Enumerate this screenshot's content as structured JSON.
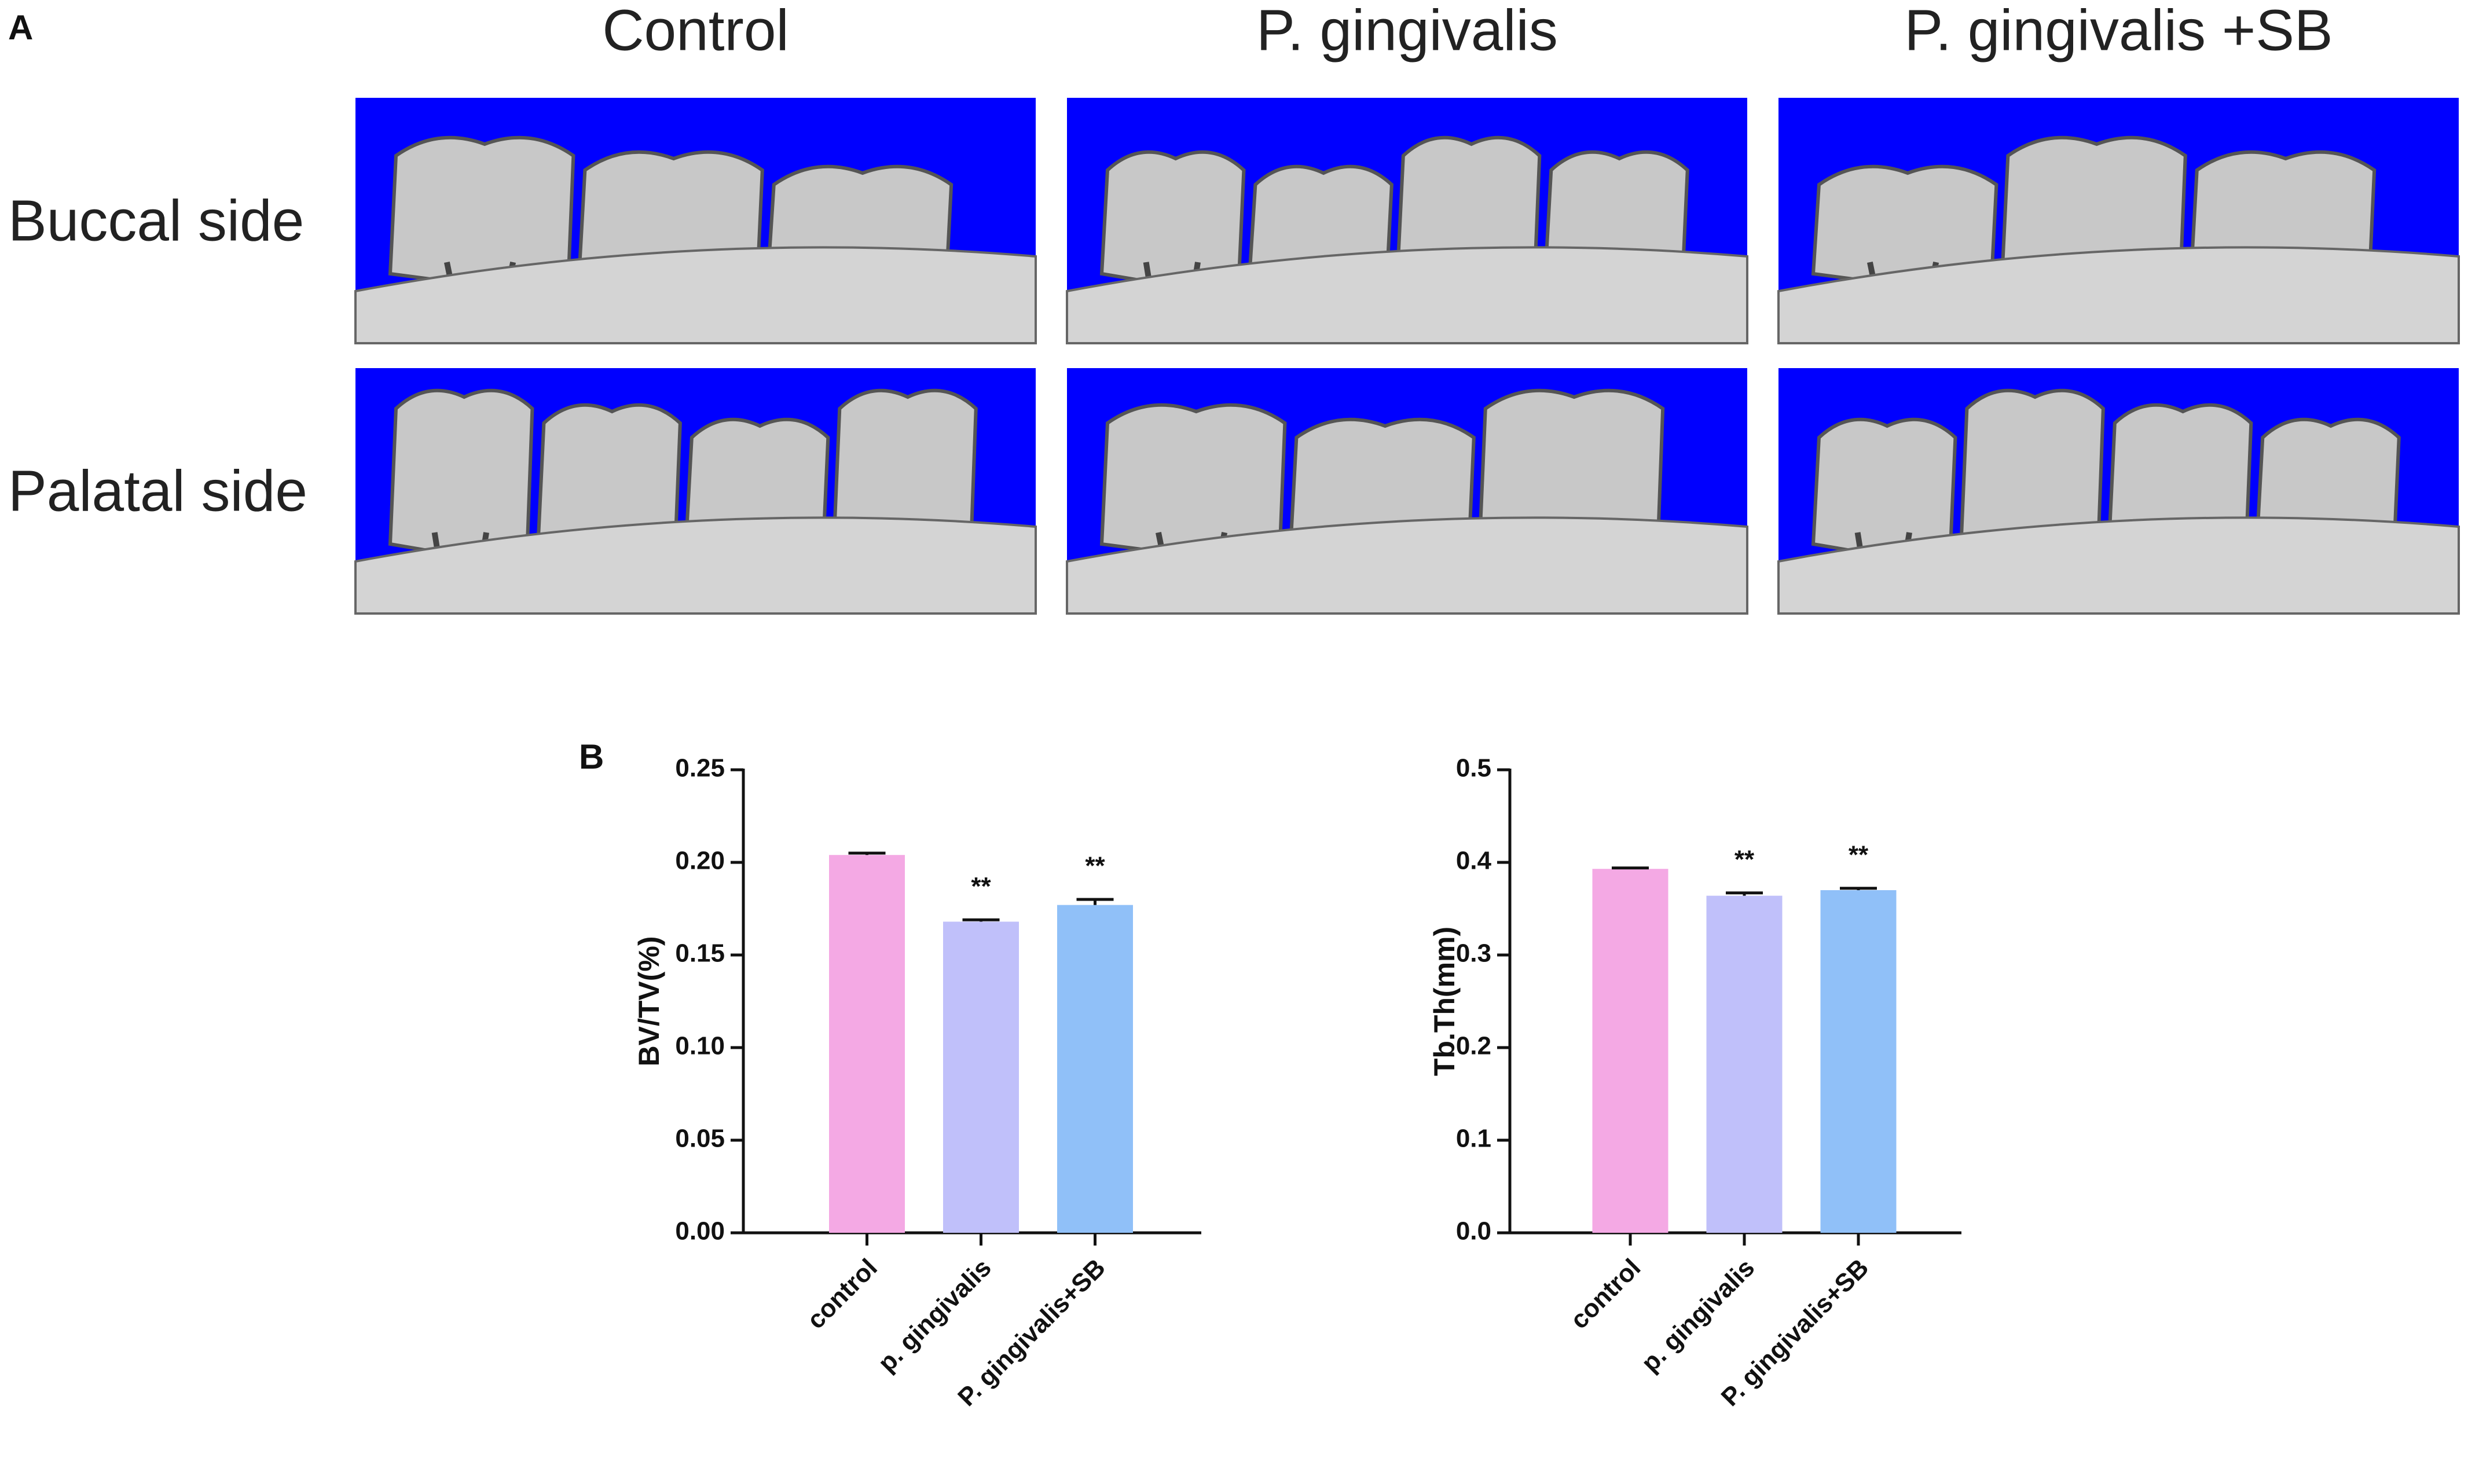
{
  "panel_a": {
    "label": "A",
    "columns": [
      "Control",
      "P. gingivalis",
      "P. gingivalis +SB"
    ],
    "rows": [
      "Buccal side",
      "Palatal side"
    ]
  },
  "chart_data": [
    {
      "type": "bar",
      "label": "B",
      "ylabel": "BV/TV(%)",
      "categories": [
        "control",
        "p. gingivalis",
        "P. gingivalis+SB"
      ],
      "values": [
        0.204,
        0.168,
        0.177
      ],
      "errors": [
        0.001,
        0.001,
        0.003
      ],
      "annotations": [
        null,
        "**",
        "**"
      ],
      "colors": [
        "#f4a9e4",
        "#c0c0fa",
        "#90c0f8"
      ],
      "ylim": [
        0,
        0.25
      ],
      "yticks": [
        {
          "value": 0,
          "label": "0.00"
        },
        0.05,
        {
          "value": 0.1,
          "label": "0.10"
        },
        0.15,
        {
          "value": 0.2,
          "label": "0.20"
        },
        0.25
      ]
    },
    {
      "type": "bar",
      "ylabel": "Tb.Th(mm)",
      "categories": [
        "control",
        "p. gingivalis",
        "P. gingivalis+SB"
      ],
      "values": [
        0.393,
        0.364,
        0.37
      ],
      "errors": [
        0.001,
        0.003,
        0.002
      ],
      "annotations": [
        null,
        "**",
        "**"
      ],
      "colors": [
        "#f4a9e4",
        "#c0c0fa",
        "#90c0f8"
      ],
      "ylim": [
        0,
        0.5
      ],
      "yticks": [
        {
          "value": 0,
          "label": "0.0"
        },
        0.1,
        0.2,
        0.3,
        0.4,
        0.5
      ]
    }
  ]
}
